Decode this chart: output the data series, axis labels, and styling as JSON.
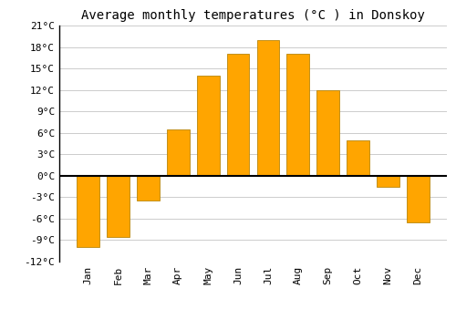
{
  "title": "Average monthly temperatures (°C ) in Donskoy",
  "months": [
    "Jan",
    "Feb",
    "Mar",
    "Apr",
    "May",
    "Jun",
    "Jul",
    "Aug",
    "Sep",
    "Oct",
    "Nov",
    "Dec"
  ],
  "values": [
    -10.0,
    -8.5,
    -3.5,
    6.5,
    14.0,
    17.0,
    19.0,
    17.0,
    12.0,
    5.0,
    -1.5,
    -6.5
  ],
  "bar_color": "#FFA500",
  "bar_edge_color": "#B8860B",
  "background_color": "#FFFFFF",
  "grid_color": "#CCCCCC",
  "ylim": [
    -12,
    21
  ],
  "yticks": [
    -12,
    -9,
    -6,
    -3,
    0,
    3,
    6,
    9,
    12,
    15,
    18,
    21
  ],
  "title_fontsize": 10,
  "tick_fontsize": 8,
  "zero_line_color": "#000000",
  "bar_width": 0.75
}
